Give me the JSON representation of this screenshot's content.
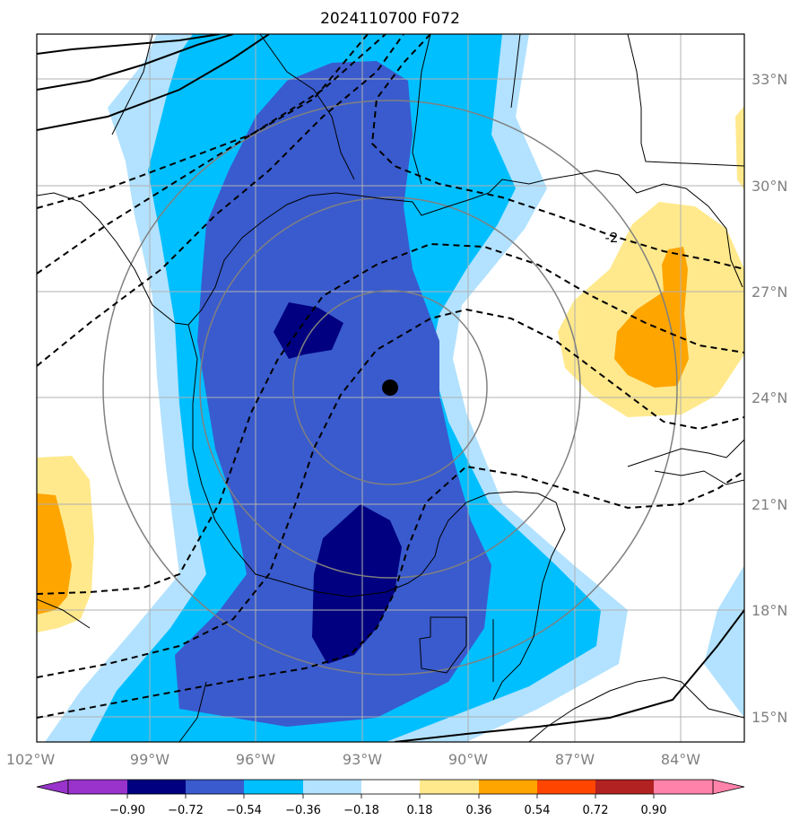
{
  "title": "2024110700 F072",
  "map": {
    "lon_ticks": [
      "102°W",
      "99°W",
      "96°W",
      "93°W",
      "90°W",
      "87°W",
      "84°W"
    ],
    "lat_ticks": [
      "33°N",
      "30°N",
      "27°N",
      "24°N",
      "21°N",
      "18°N",
      "15°N"
    ],
    "contour_label": "-2",
    "center_marker": "storm-center"
  },
  "colorbar": {
    "labels": [
      "−0.90",
      "−0.72",
      "−0.54",
      "−0.36",
      "−0.18",
      "0.18",
      "0.36",
      "0.54",
      "0.72",
      "0.90"
    ],
    "colors": [
      "#9933cc",
      "#000080",
      "#3a5bcd",
      "#00bfff",
      "#b2e2ff",
      "#ffffff",
      "#ffe98c",
      "#ffa500",
      "#ff4500",
      "#b22222",
      "#ff82ab"
    ]
  },
  "colors": {
    "land_lines": "#000000",
    "range_rings": "#808080",
    "grid": "#b0b0b0"
  }
}
